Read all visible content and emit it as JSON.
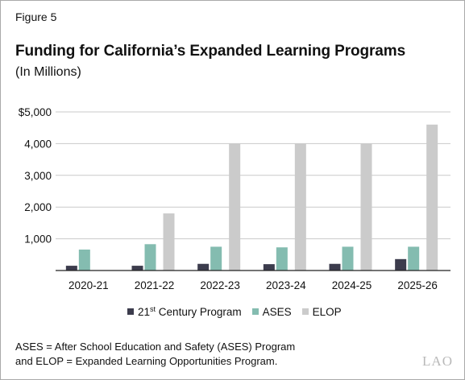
{
  "figure_label": "Figure 5",
  "logo_text": "LAO",
  "footnote_lines": [
    "ASES = After School Education and Safety (ASES) Program",
    "and ELOP = Expanded Learning Opportunities Program."
  ],
  "colors": {
    "c21": "#3c3c4d",
    "ases": "#84bcb0",
    "elop": "#cbcbcb",
    "grid": "#c9c9c9"
  },
  "chart_data": {
    "type": "bar",
    "title": "Funding for California’s Expanded Learning Programs",
    "subtitle": "(In Millions)",
    "categories": [
      "2020-21",
      "2021-22",
      "2022-23",
      "2023-24",
      "2024-25",
      "2025-26"
    ],
    "series": [
      {
        "name": "21st Century Program",
        "name_main": "21",
        "name_sup": "st",
        "name_rest": " Century Program",
        "values": [
          150,
          150,
          210,
          200,
          210,
          360
        ]
      },
      {
        "name": "ASES",
        "values": [
          660,
          830,
          750,
          730,
          750,
          750
        ]
      },
      {
        "name": "ELOP",
        "values": [
          0,
          1800,
          4000,
          4000,
          4000,
          4600
        ]
      }
    ],
    "yticks": [
      1000,
      2000,
      3000,
      4000,
      5000
    ],
    "ytick_labels": [
      "1,000",
      "2,000",
      "3,000",
      "4,000",
      "$5,000"
    ],
    "ylim": [
      0,
      5000
    ],
    "grid": true,
    "legend_position": "bottom"
  }
}
